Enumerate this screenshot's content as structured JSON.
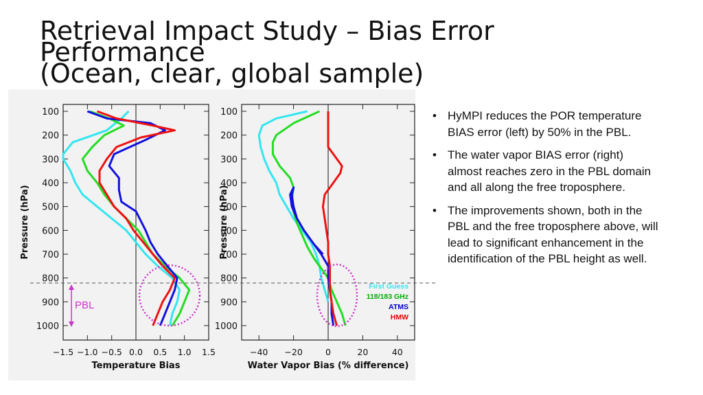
{
  "slide": {
    "title_lines": [
      "Retrieval Impact Study – Bias Error",
      "Performance",
      "(Ocean, clear, global sample)"
    ],
    "bullets": [
      "HyMPI reduces the POR temperature BIAS error (left) by 50% in the PBL.",
      "The water vapor BIAS error (right) almost reaches zero in the PBL domain and all along the free troposphere.",
      "The improvements shown, both in the PBL and the free troposphere above, will lead to significant enhancement in the identification of the PBL height as well."
    ],
    "pbl_label": "PBL",
    "legend": [
      {
        "label": "First Guess",
        "color": "#33e6f0"
      },
      {
        "label": "118/183 GHz",
        "color": "#00aa00"
      },
      {
        "label": "ATMS",
        "color": "#0000cc"
      },
      {
        "label": "HMW",
        "color": "#ee0000"
      }
    ],
    "colors": {
      "first_guess": "#33e6f0",
      "mw": "#22dd22",
      "atms": "#1111dd",
      "hmw": "#ee1111",
      "pbl_marker": "#cc33cc",
      "pbl_line": "#555555"
    }
  },
  "chart_data": [
    {
      "type": "line",
      "xlabel": "Temperature Bias",
      "ylabel": "Pressure (hPa)",
      "xlim": [
        -1.5,
        1.5
      ],
      "ylim": [
        1050,
        80
      ],
      "xticks": [
        "−1.5",
        "−1.0",
        "−0.5",
        "0.0",
        "0.5",
        "1.0",
        "1.5"
      ],
      "yticks": [
        "100",
        "200",
        "300",
        "400",
        "500",
        "600",
        "700",
        "800",
        "900",
        "1000"
      ],
      "x_tick_values": [
        -1.5,
        -1.0,
        -0.5,
        0.0,
        0.5,
        1.0,
        1.5
      ],
      "y_tick_values": [
        100,
        200,
        300,
        400,
        500,
        600,
        700,
        800,
        900,
        1000
      ],
      "zero_line": true,
      "series": [
        {
          "key": "first_guess",
          "y": [
            100,
            130,
            180,
            230,
            280,
            300,
            350,
            400,
            450,
            500,
            550,
            600,
            650,
            700,
            750,
            800,
            850,
            900,
            950,
            1000
          ],
          "x": [
            -0.15,
            -0.3,
            -0.6,
            -1.3,
            -1.55,
            -1.5,
            -1.35,
            -1.25,
            -1.1,
            -0.8,
            -0.5,
            -0.2,
            0.0,
            0.2,
            0.45,
            0.75,
            0.9,
            0.85,
            0.75,
            0.7
          ]
        },
        {
          "key": "mw",
          "y": [
            100,
            130,
            160,
            200,
            250,
            300,
            350,
            400,
            450,
            500,
            550,
            600,
            650,
            700,
            750,
            800,
            850,
            900,
            950,
            1000
          ],
          "x": [
            -0.95,
            -0.55,
            -0.25,
            -0.65,
            -0.9,
            -1.1,
            -1.0,
            -0.8,
            -0.65,
            -0.45,
            -0.2,
            0.05,
            0.2,
            0.35,
            0.6,
            0.9,
            1.1,
            1.0,
            0.9,
            0.75
          ]
        },
        {
          "key": "atms",
          "y": [
            100,
            130,
            150,
            180,
            220,
            280,
            330,
            380,
            430,
            480,
            520,
            560,
            600,
            650,
            700,
            750,
            800,
            850,
            900,
            950,
            1000
          ],
          "x": [
            -1.0,
            -0.6,
            0.3,
            0.6,
            0.2,
            -0.45,
            -0.55,
            -0.35,
            -0.35,
            -0.3,
            0.0,
            0.1,
            0.2,
            0.3,
            0.45,
            0.65,
            0.85,
            0.8,
            0.7,
            0.6,
            0.5
          ]
        },
        {
          "key": "hmw",
          "y": [
            100,
            130,
            160,
            180,
            210,
            250,
            300,
            350,
            400,
            450,
            500,
            550,
            600,
            650,
            700,
            750,
            800,
            850,
            900,
            950,
            1000
          ],
          "x": [
            -0.8,
            -0.4,
            0.35,
            0.8,
            0.1,
            -0.4,
            -0.6,
            -0.75,
            -0.75,
            -0.6,
            -0.45,
            -0.2,
            -0.05,
            0.15,
            0.35,
            0.55,
            0.8,
            0.7,
            0.55,
            0.45,
            0.35
          ]
        }
      ]
    },
    {
      "type": "line",
      "xlabel": "Water Vapor Bias (% difference)",
      "ylabel": "Pressure (hPa)",
      "xlim": [
        -50,
        50
      ],
      "ylim": [
        1050,
        80
      ],
      "xticks": [
        "−40",
        "−20",
        "0",
        "20",
        "40"
      ],
      "yticks": [
        "100",
        "200",
        "300",
        "400",
        "500",
        "600",
        "700",
        "800",
        "900",
        "1000"
      ],
      "x_tick_values": [
        -40,
        -20,
        0,
        20,
        40
      ],
      "y_tick_values": [
        100,
        200,
        300,
        400,
        500,
        600,
        700,
        800,
        900,
        1000
      ],
      "zero_line": true,
      "series": [
        {
          "key": "first_guess",
          "y": [
            100,
            130,
            160,
            200,
            250,
            300,
            350,
            400,
            450,
            500,
            550,
            600,
            650,
            700,
            750,
            800,
            850,
            900
          ],
          "x": [
            -12,
            -30,
            -38,
            -40,
            -39,
            -37,
            -34,
            -30,
            -28,
            -24,
            -20,
            -15,
            -10,
            -7,
            -5,
            -4,
            -2,
            0
          ]
        },
        {
          "key": "mw",
          "y": [
            100,
            150,
            200,
            230,
            280,
            330,
            380,
            420,
            470,
            520,
            570,
            620,
            670,
            720,
            770,
            800,
            850,
            900,
            950,
            1000
          ],
          "x": [
            -5,
            -20,
            -30,
            -32,
            -32,
            -28,
            -22,
            -20,
            -21,
            -20,
            -18,
            -15,
            -12,
            -8,
            -3,
            0,
            2,
            5,
            8,
            10
          ]
        },
        {
          "key": "atms",
          "y": [
            700,
            660,
            600,
            550,
            500,
            450,
            420,
            450,
            500,
            550,
            600,
            650,
            700,
            750,
            800,
            850,
            900,
            950,
            1000
          ],
          "x": [
            -3,
            -8,
            -14,
            -18,
            -21,
            -22,
            -20,
            -21,
            -20,
            -18,
            -14,
            -9,
            -4,
            0,
            0,
            1,
            2,
            2,
            3
          ]
        },
        {
          "key": "hmw",
          "y": [
            100,
            200,
            250,
            300,
            330,
            360,
            400,
            450,
            500,
            550,
            600,
            650,
            700,
            750,
            800,
            850,
            900,
            950,
            1000
          ],
          "x": [
            0,
            0,
            0,
            5,
            8,
            7,
            3,
            -2,
            -3,
            -2,
            -1,
            0,
            0,
            1,
            1,
            1,
            2,
            3,
            5
          ]
        }
      ]
    }
  ]
}
